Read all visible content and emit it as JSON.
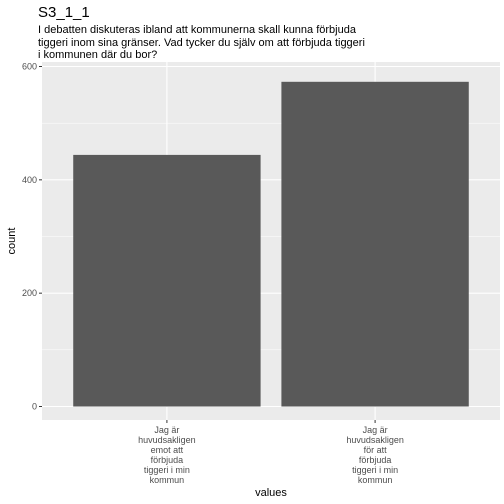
{
  "chart_data": {
    "type": "bar",
    "title": "S3_1_1",
    "subtitle": "I debatten diskuteras ibland att kommunerna skall kunna förbjuda\ntiggeri inom sina gränser. Vad tycker du själv om att förbjuda tiggeri\ni kommunen där du bor?",
    "xlabel": "values",
    "ylabel": "count",
    "categories": [
      "Jag är\nhuvudsakligen\nemot att\nförbjuda\ntiggeri i min\nkommun",
      "Jag är\nhuvudsakligen\nför att\nförbjuda\ntiggeri i min\nkommun"
    ],
    "values": [
      444,
      573
    ],
    "ylim": [
      0,
      600
    ],
    "yticks": [
      0,
      200,
      400,
      600
    ],
    "grid": true,
    "bar_color": "#595959",
    "panel_color": "#ebebeb"
  }
}
